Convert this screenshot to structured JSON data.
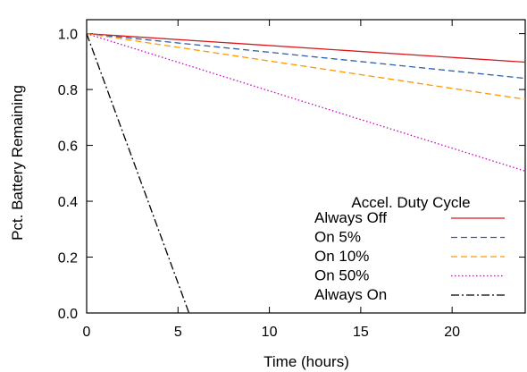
{
  "chart_data": {
    "type": "line",
    "title": "",
    "xlabel": "Time (hours)",
    "ylabel": "Pct. Battery Remaining",
    "xlim": [
      0,
      24
    ],
    "ylim": [
      0,
      1.05
    ],
    "x_ticks": [
      "0",
      "5",
      "10",
      "15",
      "20"
    ],
    "y_ticks": [
      "0.0",
      "0.2",
      "0.4",
      "0.6",
      "0.8",
      "1.0"
    ],
    "grid": false,
    "legend": {
      "title": "Accel. Duty Cycle",
      "placement": "lower-right"
    },
    "series": [
      {
        "name": "Always Off",
        "color": "#d7191c",
        "style": "solid",
        "x": [
          0,
          24
        ],
        "y": [
          1.0,
          0.898
        ]
      },
      {
        "name": "On 5%",
        "color": "#2b5faa",
        "style": "dashed",
        "x": [
          0,
          24
        ],
        "y": [
          1.0,
          0.84
        ]
      },
      {
        "name": "On 10%",
        "color": "#ff9900",
        "style": "dashed",
        "x": [
          0,
          24
        ],
        "y": [
          1.0,
          0.765
        ]
      },
      {
        "name": "On 50%",
        "color": "#cc00cc",
        "style": "dotted",
        "x": [
          0,
          24
        ],
        "y": [
          1.0,
          0.508
        ]
      },
      {
        "name": "Always On",
        "color": "#000000",
        "style": "dashdot",
        "x": [
          0,
          5.6
        ],
        "y": [
          1.0,
          0.0
        ]
      }
    ]
  }
}
